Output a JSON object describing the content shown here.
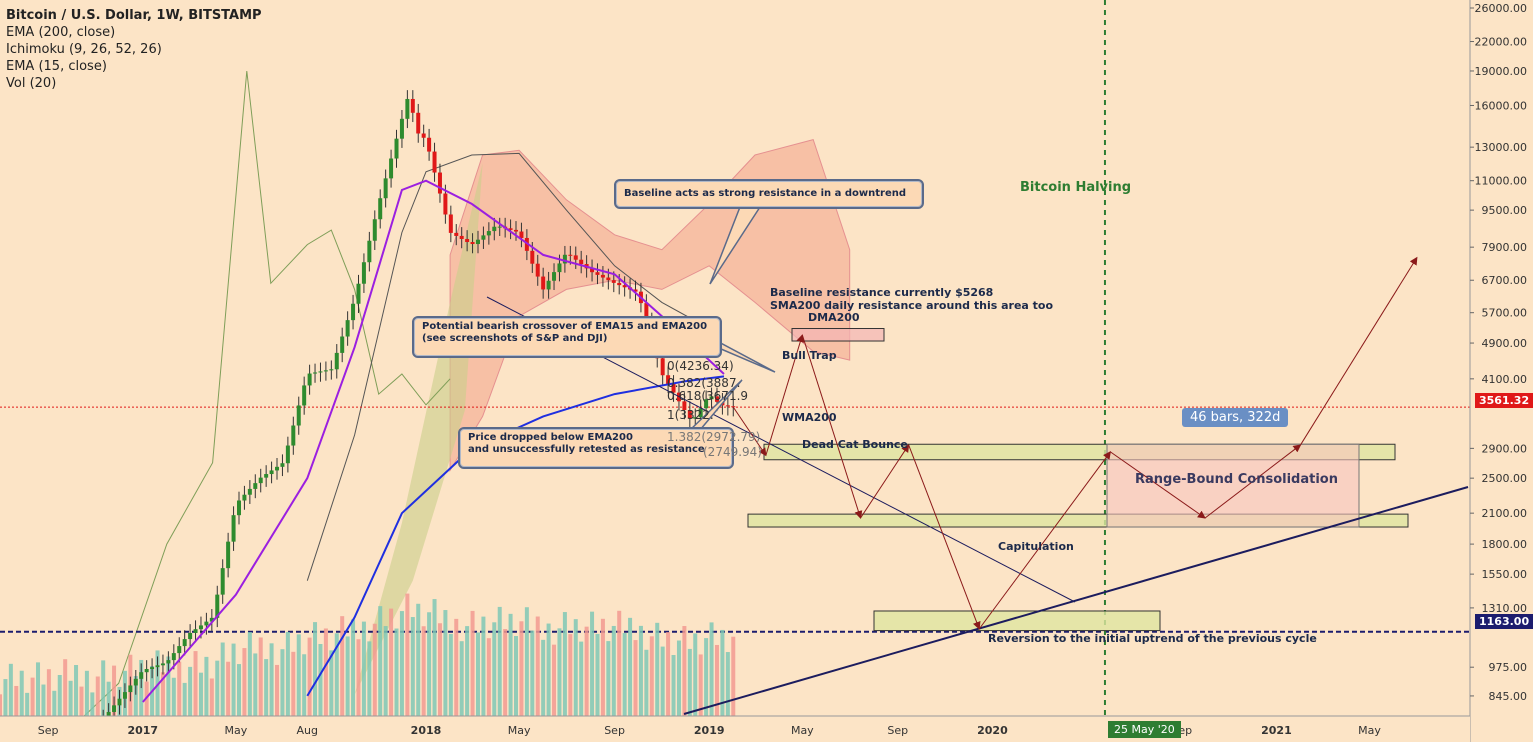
{
  "legend": {
    "title": "Bitcoin / U.S. Dollar, 1W, BITSTAMP",
    "lines": [
      "EMA (200, close)",
      "Ichimoku (9, 26, 52, 26)",
      "EMA (15, close)",
      "Vol (20)"
    ]
  },
  "annotations": {
    "baseline_box": "Baseline acts as strong resistance in a downtrend",
    "crossover_box_1": "Potential bearish crossover of EMA15 and EMA200",
    "crossover_box_2": "(see screenshots of S&P and DJI)",
    "price_box_1": "Price dropped below EMA200",
    "price_box_2": "and unsuccessfully retested as resistance",
    "baseline_res_1": "Baseline resistance currently $5268",
    "baseline_res_2": "SMA200 daily resistance around this area too",
    "dma200": "DMA200",
    "bull_trap": "Bull Trap",
    "wma200": "WMA200",
    "dead_cat": "Dead Cat Bounce",
    "capitulation": "Capitulation",
    "reversion": "Reversion to the initial uptrend of the previous cycle",
    "halving": "Bitcoin Halving",
    "bars": "46 bars, 322d",
    "range_bound": "Range-Bound Consolidation"
  },
  "fib_labels": [
    "0(4236.34)",
    "0.382(3887.",
    "0.618(3671.9",
    "1(3322.",
    "1.382(2972.79)",
    "(2749.94)"
  ],
  "price_tags": {
    "current": "3561.32",
    "support": "1163.00"
  },
  "date_tag": "25 May '20",
  "colors": {
    "background": "#fce4c6",
    "up": "#2e8b2e",
    "down": "#e01818",
    "ema200": "#1f2fe0",
    "ema15": "#9b1fe0",
    "halving": "#2e7d32",
    "current_price": "#e01818",
    "support": "#1c1c6e"
  },
  "chart_data": {
    "type": "candlestick",
    "title": "Bitcoin / U.S. Dollar, 1W, BITSTAMP",
    "y_scale": "log",
    "y_ticks": [
      26000,
      22000,
      19000,
      16000,
      13000,
      11000,
      9500,
      7900,
      6700,
      5700,
      4900,
      4100,
      3561.32,
      2900,
      2500,
      2100,
      1800,
      1550,
      1310,
      1163,
      975,
      845
    ],
    "x_ticks": [
      "Sep",
      "2017",
      "May",
      "Aug",
      "2018",
      "May",
      "Sep",
      "2019",
      "May",
      "Sep",
      "2020",
      "25 May '20",
      "Sep",
      "2021",
      "May"
    ],
    "x_tick_dates": [
      "2016-09-01",
      "2017-01-01",
      "2017-05-01",
      "2017-08-01",
      "2018-01-01",
      "2018-05-01",
      "2018-09-01",
      "2019-01-01",
      "2019-05-01",
      "2019-09-01",
      "2020-01-01",
      "2020-05-25",
      "2020-09-01",
      "2021-01-01",
      "2021-05-01"
    ],
    "price_path": [
      [
        "2016-07-01",
        650
      ],
      [
        "2016-09-01",
        610
      ],
      [
        "2016-11-01",
        720
      ],
      [
        "2017-01-01",
        960
      ],
      [
        "2017-02-01",
        1000
      ],
      [
        "2017-03-01",
        1150
      ],
      [
        "2017-04-01",
        1250
      ],
      [
        "2017-05-01",
        2200
      ],
      [
        "2017-06-01",
        2500
      ],
      [
        "2017-07-01",
        2700
      ],
      [
        "2017-08-01",
        4200
      ],
      [
        "2017-09-01",
        4300
      ],
      [
        "2017-10-01",
        6100
      ],
      [
        "2017-11-01",
        9800
      ],
      [
        "2017-12-10",
        17000
      ],
      [
        "2017-12-20",
        14000
      ],
      [
        "2018-01-01",
        13500
      ],
      [
        "2018-02-01",
        8500
      ],
      [
        "2018-03-01",
        8000
      ],
      [
        "2018-04-01",
        8800
      ],
      [
        "2018-05-01",
        8500
      ],
      [
        "2018-06-01",
        6400
      ],
      [
        "2018-07-01",
        7700
      ],
      [
        "2018-08-01",
        7000
      ],
      [
        "2018-09-01",
        6600
      ],
      [
        "2018-10-01",
        6300
      ],
      [
        "2018-11-01",
        4200
      ],
      [
        "2018-12-10",
        3300
      ],
      [
        "2019-01-01",
        3800
      ],
      [
        "2019-01-15",
        3600
      ],
      [
        "2019-02-01",
        3561
      ]
    ],
    "ema200_path": [
      [
        "2017-08-01",
        845
      ],
      [
        "2017-10-01",
        1250
      ],
      [
        "2017-12-01",
        2100
      ],
      [
        "2018-03-01",
        2900
      ],
      [
        "2018-06-01",
        3400
      ],
      [
        "2018-09-01",
        3800
      ],
      [
        "2018-12-01",
        4050
      ],
      [
        "2019-01-20",
        4150
      ]
    ],
    "ema15_path": [
      [
        "2017-01-01",
        820
      ],
      [
        "2017-05-01",
        1400
      ],
      [
        "2017-08-01",
        2500
      ],
      [
        "2017-10-01",
        4800
      ],
      [
        "2017-12-01",
        10500
      ],
      [
        "2018-01-01",
        11000
      ],
      [
        "2018-03-01",
        9800
      ],
      [
        "2018-06-01",
        7600
      ],
      [
        "2018-09-01",
        6900
      ],
      [
        "2018-11-01",
        5600
      ],
      [
        "2019-01-20",
        4200
      ]
    ],
    "projection": [
      [
        "2019-02-01",
        3561
      ],
      [
        "2019-03-15",
        2800
      ],
      [
        "2019-05-01",
        5100
      ],
      [
        "2019-07-15",
        2050
      ],
      [
        "2019-09-15",
        2950
      ],
      [
        "2019-12-15",
        1180
      ],
      [
        "2020-06-01",
        2850
      ],
      [
        "2020-10-01",
        2050
      ],
      [
        "2021-02-01",
        2950
      ],
      [
        "2021-07-01",
        7500
      ]
    ],
    "levels": {
      "current_price": 3561.32,
      "support": 1163.0,
      "halving_date": "2020-05-25"
    }
  }
}
